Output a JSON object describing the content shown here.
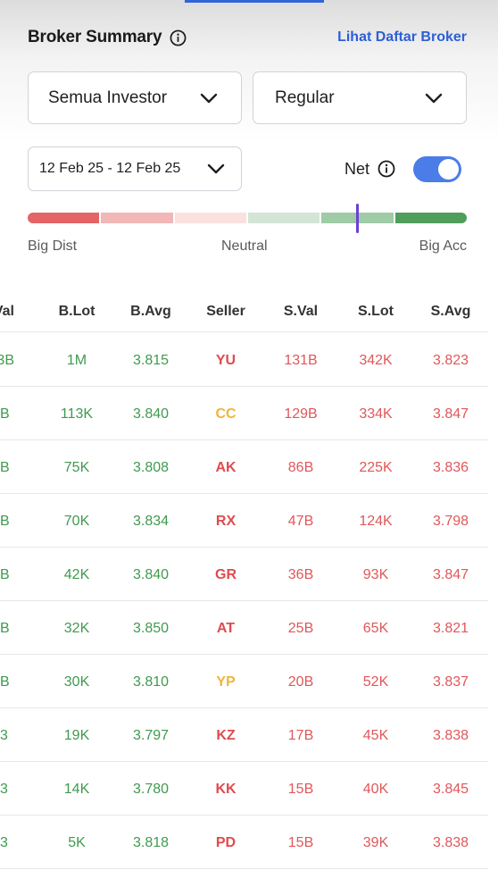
{
  "header": {
    "title": "Broker Summary",
    "link": "Lihat Daftar Broker"
  },
  "filters": {
    "investor": "Semua Investor",
    "board": "Regular",
    "date_range": "12 Feb 25 - 12 Feb 25",
    "net_label": "Net",
    "net_enabled": true
  },
  "meter": {
    "segment_colors": [
      "#e46565",
      "#f2b7b7",
      "#fbe0e0",
      "#d3e5d6",
      "#9fcba6",
      "#4f9e5c"
    ],
    "level": 0.75,
    "labels": {
      "left": "Big Dist",
      "center": "Neutral",
      "right": "Big Acc"
    }
  },
  "table": {
    "columns": [
      "Val",
      "B.Lot",
      "B.Avg",
      "Seller",
      "S.Val",
      "S.Lot",
      "S.Avg"
    ],
    "rows": [
      {
        "bval": "3B",
        "blot": "1M",
        "bavg": "3.815",
        "seller": "YU",
        "seller_color": "red",
        "sval": "131B",
        "slot": "342K",
        "savg": "3.823"
      },
      {
        "bval": "B",
        "blot": "113K",
        "bavg": "3.840",
        "seller": "CC",
        "seller_color": "orange",
        "sval": "129B",
        "slot": "334K",
        "savg": "3.847"
      },
      {
        "bval": "B",
        "blot": "75K",
        "bavg": "3.808",
        "seller": "AK",
        "seller_color": "red",
        "sval": "86B",
        "slot": "225K",
        "savg": "3.836"
      },
      {
        "bval": "B",
        "blot": "70K",
        "bavg": "3.834",
        "seller": "RX",
        "seller_color": "red",
        "sval": "47B",
        "slot": "124K",
        "savg": "3.798"
      },
      {
        "bval": "B",
        "blot": "42K",
        "bavg": "3.840",
        "seller": "GR",
        "seller_color": "red",
        "sval": "36B",
        "slot": "93K",
        "savg": "3.847"
      },
      {
        "bval": "B",
        "blot": "32K",
        "bavg": "3.850",
        "seller": "AT",
        "seller_color": "red",
        "sval": "25B",
        "slot": "65K",
        "savg": "3.821"
      },
      {
        "bval": "B",
        "blot": "30K",
        "bavg": "3.810",
        "seller": "YP",
        "seller_color": "orange",
        "sval": "20B",
        "slot": "52K",
        "savg": "3.837"
      },
      {
        "bval": "3",
        "blot": "19K",
        "bavg": "3.797",
        "seller": "KZ",
        "seller_color": "red",
        "sval": "17B",
        "slot": "45K",
        "savg": "3.838"
      },
      {
        "bval": "3",
        "blot": "14K",
        "bavg": "3.780",
        "seller": "KK",
        "seller_color": "red",
        "sval": "15B",
        "slot": "40K",
        "savg": "3.845"
      },
      {
        "bval": "3",
        "blot": "5K",
        "bavg": "3.818",
        "seller": "PD",
        "seller_color": "red",
        "sval": "15B",
        "slot": "39K",
        "savg": "3.838"
      }
    ]
  }
}
